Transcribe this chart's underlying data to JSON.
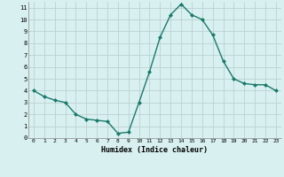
{
  "x": [
    0,
    1,
    2,
    3,
    4,
    5,
    6,
    7,
    8,
    9,
    10,
    11,
    12,
    13,
    14,
    15,
    16,
    17,
    18,
    19,
    20,
    21,
    22,
    23
  ],
  "y": [
    4.0,
    3.5,
    3.2,
    3.0,
    2.0,
    1.6,
    1.5,
    1.4,
    0.4,
    0.5,
    3.0,
    5.6,
    8.5,
    10.4,
    11.3,
    10.4,
    10.0,
    8.7,
    6.5,
    5.0,
    4.6,
    4.5,
    4.5,
    4.0
  ],
  "xlabel": "Humidex (Indice chaleur)",
  "ylim": [
    0,
    11.5
  ],
  "xlim": [
    -0.5,
    23.5
  ],
  "bg_color": "#d8f0f0",
  "grid_color": "#b8cccc",
  "line_color": "#1a7a6a",
  "marker_color": "#1a7a6a",
  "xtick_labels": [
    "0",
    "1",
    "2",
    "3",
    "4",
    "5",
    "6",
    "7",
    "8",
    "9",
    "10",
    "11",
    "12",
    "13",
    "14",
    "15",
    "16",
    "17",
    "18",
    "19",
    "20",
    "21",
    "22",
    "23"
  ],
  "ytick_vals": [
    0,
    1,
    2,
    3,
    4,
    5,
    6,
    7,
    8,
    9,
    10,
    11
  ]
}
